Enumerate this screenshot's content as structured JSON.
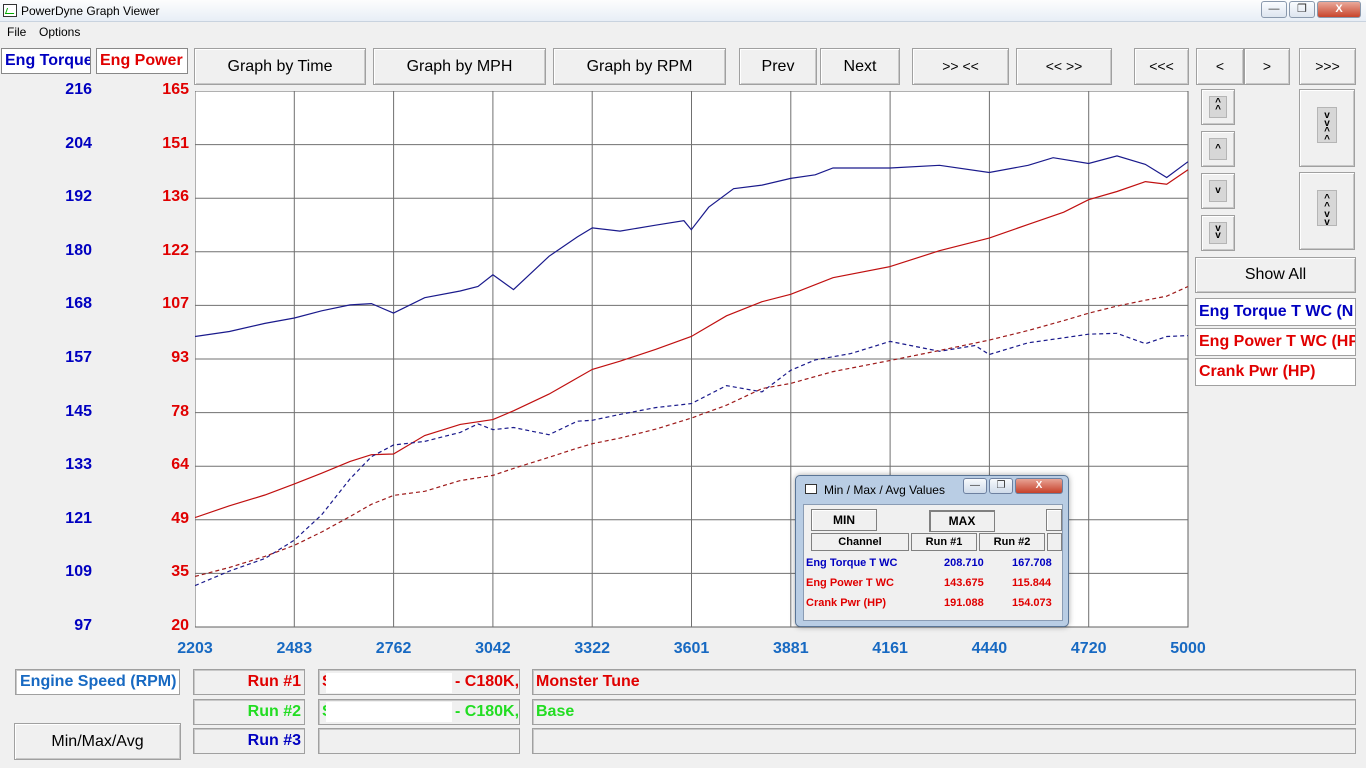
{
  "window": {
    "title": "PowerDyne Graph Viewer",
    "minimize_glyph": "—",
    "maximize_glyph": "❐",
    "close_glyph": "X"
  },
  "menu": {
    "items": [
      "File",
      "Options"
    ]
  },
  "axis_headers": {
    "torque": {
      "label": "Eng Torque",
      "color": "#0000c0"
    },
    "power": {
      "label": "Eng Power",
      "color": "#e00000"
    }
  },
  "toolbar": {
    "graph_by_time": "Graph by Time",
    "graph_by_mph": "Graph by MPH",
    "graph_by_rpm": "Graph by RPM",
    "prev": "Prev",
    "next": "Next",
    "zoom_in_x": ">> <<",
    "zoom_out_x": "<< >>",
    "scroll_far_left": "<<<",
    "scroll_left": "<",
    "scroll_right": ">",
    "scroll_far_right": ">>>",
    "show_all": "Show All"
  },
  "legend": [
    {
      "label": "Eng Torque T WC (N",
      "color": "#0000c0"
    },
    {
      "label": "Eng Power T WC (HP",
      "color": "#e00000"
    },
    {
      "label": "Crank Pwr (HP)",
      "color": "#e00000"
    }
  ],
  "chart_data": {
    "type": "line",
    "x_label": "Engine Speed (RPM)",
    "xlim": [
      2203,
      5000
    ],
    "x_ticks": [
      "2203",
      "2483",
      "2762",
      "3042",
      "3322",
      "3601",
      "3881",
      "4161",
      "4440",
      "4720",
      "5000"
    ],
    "y_left": {
      "name": "Eng Torque",
      "ylim": [
        97,
        216
      ],
      "ticks": [
        "216",
        "204",
        "192",
        "180",
        "168",
        "157",
        "145",
        "133",
        "121",
        "109",
        "97"
      ]
    },
    "y_right": {
      "name": "Eng Power",
      "ylim": [
        20,
        165
      ],
      "ticks": [
        "165",
        "151",
        "136",
        "122",
        "107",
        "93",
        "78",
        "64",
        "49",
        "35",
        "20"
      ]
    },
    "grid": true,
    "series": [
      {
        "name": "Eng Torque T WC",
        "run": "Run #1",
        "color": "#1a1a8c",
        "style": "solid",
        "axis": "left",
        "x": [
          2203,
          2300,
          2400,
          2483,
          2560,
          2640,
          2700,
          2762,
          2850,
          2950,
          3000,
          3042,
          3100,
          3200,
          3280,
          3322,
          3400,
          3500,
          3580,
          3601,
          3650,
          3720,
          3800,
          3881,
          3950,
          4000,
          4161,
          4300,
          4440,
          4550,
          4620,
          4720,
          4800,
          4880,
          4940,
          5000
        ],
        "y": [
          161.5,
          162.6,
          164.4,
          165.6,
          167.2,
          168.5,
          168.8,
          166.7,
          170.1,
          171.6,
          172.6,
          175.2,
          171.9,
          179.3,
          183.6,
          185.6,
          184.9,
          186.2,
          187.2,
          185.2,
          190.2,
          194.3,
          195.1,
          196.6,
          197.4,
          198.9,
          198.9,
          199.5,
          197.9,
          199.5,
          201.2,
          199.9,
          201.6,
          199.7,
          196.8,
          200.3
        ]
      },
      {
        "name": "Eng Power T WC",
        "run": "Run #1",
        "color": "#c01010",
        "style": "solid",
        "axis": "right",
        "x": [
          2203,
          2300,
          2400,
          2483,
          2560,
          2640,
          2700,
          2762,
          2850,
          2950,
          3042,
          3100,
          3200,
          3280,
          3322,
          3400,
          3500,
          3601,
          3700,
          3800,
          3881,
          4000,
          4161,
          4300,
          4440,
          4550,
          4650,
          4720,
          4800,
          4880,
          4940,
          5000
        ],
        "y": [
          49.6,
          52.8,
          55.7,
          58.7,
          61.6,
          64.8,
          66.6,
          66.8,
          71.8,
          74.8,
          76.1,
          78.5,
          83.0,
          87.4,
          89.7,
          91.9,
          95.1,
          98.6,
          104.2,
          108.0,
          110.0,
          114.5,
          117.5,
          121.8,
          125.2,
          128.9,
          132.2,
          135.6,
          137.8,
          140.5,
          139.8,
          143.7
        ]
      },
      {
        "name": "Eng Torque T WC",
        "run": "Run #2",
        "color": "#1a1a8c",
        "style": "dashed",
        "axis": "left",
        "x": [
          2203,
          2300,
          2400,
          2483,
          2560,
          2640,
          2700,
          2762,
          2850,
          2950,
          3000,
          3042,
          3100,
          3200,
          3280,
          3322,
          3400,
          3500,
          3601,
          3700,
          3800,
          3881,
          3950,
          4050,
          4161,
          4300,
          4400,
          4440,
          4550,
          4650,
          4720,
          4800,
          4880,
          4940,
          5000
        ],
        "y": [
          106.2,
          109.4,
          112.2,
          116.3,
          121.9,
          129.9,
          134.8,
          137.4,
          138.2,
          140.2,
          142.1,
          140.8,
          141.3,
          139.7,
          142.7,
          142.9,
          144.2,
          145.7,
          146.6,
          150.6,
          149.2,
          154.0,
          156.3,
          157.7,
          160.4,
          158.2,
          159.5,
          157.5,
          160.1,
          161.2,
          162.0,
          162.2,
          159.9,
          161.5,
          161.7
        ]
      },
      {
        "name": "Crank Pwr (HP)",
        "run": "Run #2",
        "color": "#9e1b1b",
        "style": "dashed",
        "axis": "right",
        "x": [
          2203,
          2300,
          2400,
          2483,
          2560,
          2640,
          2700,
          2762,
          2850,
          2950,
          3042,
          3100,
          3200,
          3280,
          3322,
          3400,
          3500,
          3601,
          3700,
          3800,
          3881,
          4000,
          4161,
          4300,
          4440,
          4550,
          4650,
          4720,
          4800,
          4880,
          4940,
          5000
        ],
        "y": [
          33.7,
          36.1,
          39.1,
          42.1,
          45.7,
          49.9,
          53.2,
          55.6,
          56.7,
          59.6,
          61.0,
          62.9,
          65.9,
          68.4,
          69.6,
          71.1,
          73.5,
          76.5,
          80.0,
          84.5,
          85.9,
          89.1,
          92.1,
          94.8,
          97.6,
          100.2,
          102.9,
          104.9,
          106.8,
          108.4,
          109.5,
          112.1
        ]
      }
    ]
  },
  "bottom": {
    "x_channel": "Engine Speed (RPM)",
    "minmax_button": "Min/Max/Avg",
    "runs": [
      {
        "label": "Run #1",
        "color": "#e00000",
        "vehicle": "- C180K,",
        "vehicle_prefix": "S",
        "tune": "Monster Tune"
      },
      {
        "label": "Run #2",
        "color": "#22dd22",
        "vehicle": "- C180K,",
        "vehicle_prefix": "S",
        "tune": "Base"
      },
      {
        "label": "Run #3",
        "color": "#0000c0",
        "vehicle": "",
        "vehicle_prefix": "",
        "tune": ""
      }
    ]
  },
  "minmax_dialog": {
    "title": "Min / Max / Avg Values",
    "min_button": "MIN",
    "max_button": "MAX",
    "headers": [
      "Channel",
      "Run #1",
      "Run #2"
    ],
    "rows": [
      {
        "channel": "Eng Torque T WC",
        "run1": "208.710",
        "run2": "167.708",
        "color": "#0000c0"
      },
      {
        "channel": "Eng Power T WC",
        "run1": "143.675",
        "run2": "115.844",
        "color": "#e00000"
      },
      {
        "channel": "Crank Pwr (HP)",
        "run1": "191.088",
        "run2": "154.073",
        "color": "#e00000"
      }
    ]
  }
}
